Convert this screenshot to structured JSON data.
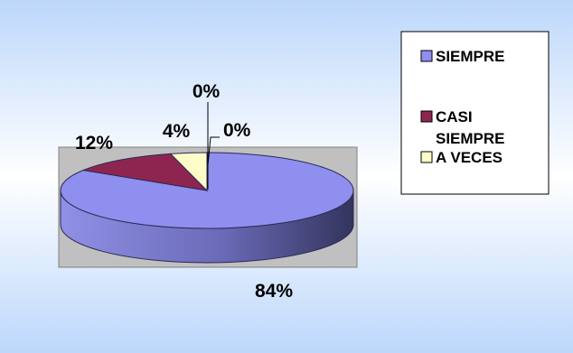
{
  "chart_data": {
    "type": "pie",
    "style": "3d",
    "title": "",
    "slices": [
      {
        "label": "SIEMPRE",
        "value": 84,
        "display": "84%",
        "color": "#8f8fef"
      },
      {
        "label": "CASI SIEMPRE",
        "value": 12,
        "display": "12%",
        "color": "#8e2550"
      },
      {
        "label": "A VECES",
        "value": 4,
        "display": "4%",
        "color": "#fefdc8"
      },
      {
        "label": "",
        "value": 0,
        "display": "0%",
        "color": ""
      },
      {
        "label": "",
        "value": 0,
        "display": "0%",
        "color": ""
      }
    ],
    "legend": {
      "placement": "right",
      "items": [
        {
          "label": "SIEMPRE",
          "color": "#8f8fef"
        },
        {
          "label": "CASI SIEMPRE",
          "color": "#8e2550"
        },
        {
          "label": "A VECES",
          "color": "#fefdc8"
        }
      ]
    },
    "background": {
      "gradient_top": "#bcd7fb",
      "gradient_middle": "#ffffff",
      "gradient_bottom": "#bcd7fb"
    },
    "plot_area_color": "#c0c0c0"
  }
}
